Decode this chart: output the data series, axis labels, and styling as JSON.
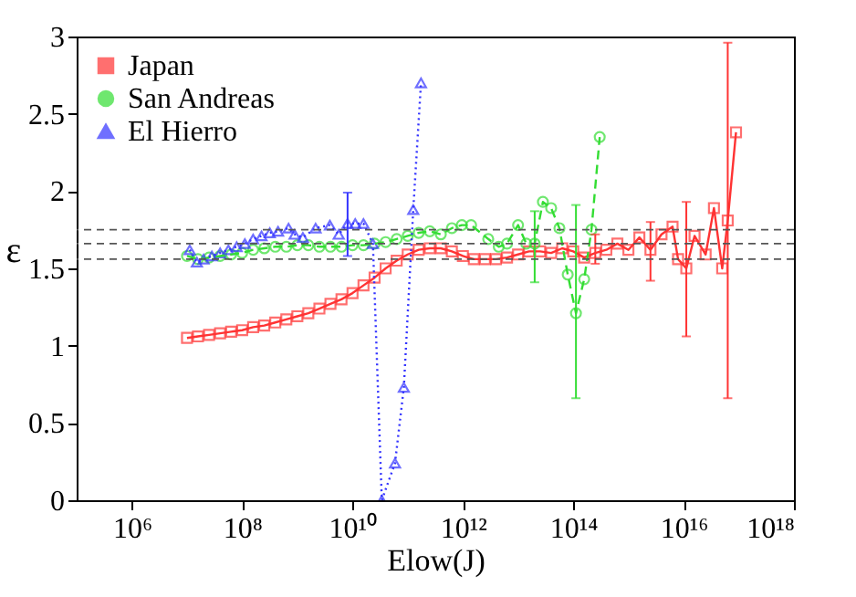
{
  "chart_data": {
    "type": "line",
    "xlabel": "Elow(J)",
    "ylabel": "ε",
    "log": "x",
    "xlim": [
      100000.0,
      1e+18
    ],
    "xticks": [
      {
        "value": 1000000.0,
        "label": "10⁶"
      },
      {
        "value": 100000000.0,
        "label": "10⁸"
      },
      {
        "value": 10000000000.0,
        "label": "10¹⁰"
      },
      {
        "value": 1000000000000.0,
        "label": "10¹²"
      },
      {
        "value": 100000000000000.0,
        "label": "10¹⁴"
      },
      {
        "value": 1e+16,
        "label": "10¹⁶"
      },
      {
        "value": 1e+18,
        "label": "10¹⁸"
      }
    ],
    "ylim": [
      0,
      3
    ],
    "yticks": [
      0,
      0.5,
      1,
      1.5,
      2,
      2.5,
      3
    ],
    "grid": false,
    "legend": "top left",
    "ref_lines": [
      {
        "axis": "y",
        "value": 1.75,
        "color": "#555555",
        "line_style": "dashed"
      },
      {
        "axis": "y",
        "value": 1.66,
        "color": "#555555",
        "line_style": "dashed"
      },
      {
        "axis": "y",
        "value": 1.56,
        "color": "#555555",
        "line_style": "dashed"
      }
    ],
    "series": [
      {
        "name": "Japan",
        "color": "#ff3333",
        "marker": "square",
        "line_style": "solid",
        "x": [
          10000000.0,
          15800000.0,
          25100000.0,
          39800000.0,
          63100000.0,
          100000000.0,
          158000000.0,
          251000000.0,
          398000000.0,
          631000000.0,
          1000000000.0,
          1580000000.0,
          2510000000.0,
          3980000000.0,
          6310000000.0,
          10000000000.0,
          15800000000.0,
          25100000000.0,
          39800000000.0,
          63100000000.0,
          100000000000.0,
          158000000000.0,
          251000000000.0,
          398000000000.0,
          631000000000.0,
          1000000000000.0,
          1580000000000.0,
          2510000000000.0,
          3980000000000.0,
          6310000000000.0,
          10000000000000.0,
          15800000000000.0,
          25100000000000.0,
          39800000000000.0,
          63100000000000.0,
          100000000000000.0,
          158000000000000.0,
          251000000000000.0,
          398000000000000.0,
          631000000000000.0,
          1000000000000000.0,
          1580000000000000.0,
          2510000000000000.0,
          3980000000000000.0,
          6310000000000000.0,
          7940000000000000.0,
          1.12e+16,
          1.58e+16,
          2.51e+16,
          3.55e+16,
          5.01e+16,
          6.31e+16,
          8.91e+16
        ],
        "values": [
          1.05,
          1.06,
          1.07,
          1.08,
          1.09,
          1.1,
          1.12,
          1.13,
          1.15,
          1.17,
          1.19,
          1.21,
          1.24,
          1.27,
          1.3,
          1.34,
          1.39,
          1.44,
          1.5,
          1.55,
          1.59,
          1.62,
          1.63,
          1.63,
          1.61,
          1.58,
          1.56,
          1.56,
          1.56,
          1.57,
          1.59,
          1.61,
          1.61,
          1.6,
          1.63,
          1.61,
          1.57,
          1.6,
          1.62,
          1.66,
          1.62,
          1.7,
          1.62,
          1.72,
          1.77,
          1.56,
          1.5,
          1.71,
          1.59,
          1.89,
          1.5,
          1.81,
          2.38
        ],
        "errors": [
          null,
          null,
          null,
          null,
          null,
          null,
          null,
          null,
          null,
          null,
          null,
          null,
          null,
          null,
          null,
          null,
          null,
          null,
          null,
          null,
          null,
          null,
          null,
          null,
          null,
          null,
          null,
          null,
          null,
          null,
          null,
          null,
          null,
          null,
          null,
          null,
          null,
          [
            1.53,
            1.72
          ],
          null,
          null,
          null,
          null,
          [
            1.42,
            1.8
          ],
          null,
          null,
          null,
          [
            1.06,
            1.93
          ],
          null,
          null,
          null,
          null,
          [
            0.66,
            2.96
          ],
          null
        ]
      },
      {
        "name": "San Andreas",
        "color": "#33dd33",
        "marker": "circle",
        "line_style": "dashed",
        "x": [
          10000000.0,
          15800000.0,
          25100000.0,
          39800000.0,
          63100000.0,
          100000000.0,
          158000000.0,
          251000000.0,
          398000000.0,
          631000000.0,
          1000000000.0,
          1580000000.0,
          2510000000.0,
          3980000000.0,
          6310000000.0,
          10000000000.0,
          15800000000.0,
          25100000000.0,
          39800000000.0,
          63100000000.0,
          100000000000.0,
          158000000000.0,
          251000000000.0,
          398000000000.0,
          631000000000.0,
          955000000000.0,
          1410000000000.0,
          2880000000000.0,
          4470000000000.0,
          6310000000000.0,
          10000000000000.0,
          14100000000000.0,
          20000000000000.0,
          28200000000000.0,
          39800000000000.0,
          56200000000000.0,
          79400000000000.0,
          112000000000000.0,
          158000000000000.0,
          214000000000000.0,
          302000000000000.0
        ],
        "values": [
          1.58,
          1.56,
          1.57,
          1.58,
          1.59,
          1.6,
          1.62,
          1.63,
          1.64,
          1.64,
          1.65,
          1.65,
          1.64,
          1.64,
          1.64,
          1.65,
          1.65,
          1.66,
          1.67,
          1.69,
          1.71,
          1.73,
          1.74,
          1.72,
          1.76,
          1.78,
          1.78,
          1.69,
          1.64,
          1.66,
          1.78,
          1.66,
          1.66,
          1.93,
          1.89,
          1.76,
          1.46,
          1.21,
          1.43,
          1.75,
          2.35
        ],
        "errors": [
          null,
          null,
          null,
          null,
          null,
          null,
          null,
          null,
          null,
          null,
          null,
          null,
          null,
          null,
          null,
          null,
          null,
          null,
          null,
          null,
          null,
          null,
          null,
          null,
          null,
          null,
          null,
          null,
          null,
          null,
          null,
          null,
          [
            1.41,
            1.87
          ],
          null,
          null,
          null,
          null,
          [
            0.66,
            1.91
          ],
          null,
          null,
          null
        ]
      },
      {
        "name": "El Hierro",
        "color": "#3333ff",
        "marker": "triangle",
        "line_style": "dotted",
        "x": [
          11200000.0,
          15100000.0,
          20000000.0,
          28200000.0,
          39800000.0,
          56200000.0,
          79400000.0,
          112000000.0,
          158000000.0,
          224000000.0,
          316000000.0,
          447000000.0,
          692000000.0,
          891000000.0,
          1260000000.0,
          2140000000.0,
          3890000000.0,
          5620000000.0,
          8130000000.0,
          11200000000.0,
          15800000000.0,
          23400000000.0,
          33900000000.0,
          58900000000.0,
          85100000000.0,
          126000000000.0,
          174000000000.0
        ],
        "values": [
          1.62,
          1.54,
          1.56,
          1.58,
          1.6,
          1.62,
          1.64,
          1.66,
          1.69,
          1.71,
          1.73,
          1.74,
          1.76,
          1.72,
          1.7,
          1.76,
          1.78,
          1.72,
          1.79,
          1.79,
          1.79,
          1.66,
          0,
          0.24,
          0.73,
          1.88,
          2.7
        ],
        "errors": [
          null,
          null,
          null,
          null,
          null,
          null,
          null,
          null,
          null,
          null,
          null,
          null,
          null,
          null,
          null,
          null,
          null,
          null,
          [
            1.58,
            1.99
          ],
          null,
          null,
          null,
          null,
          null,
          null,
          null,
          null
        ]
      }
    ]
  }
}
